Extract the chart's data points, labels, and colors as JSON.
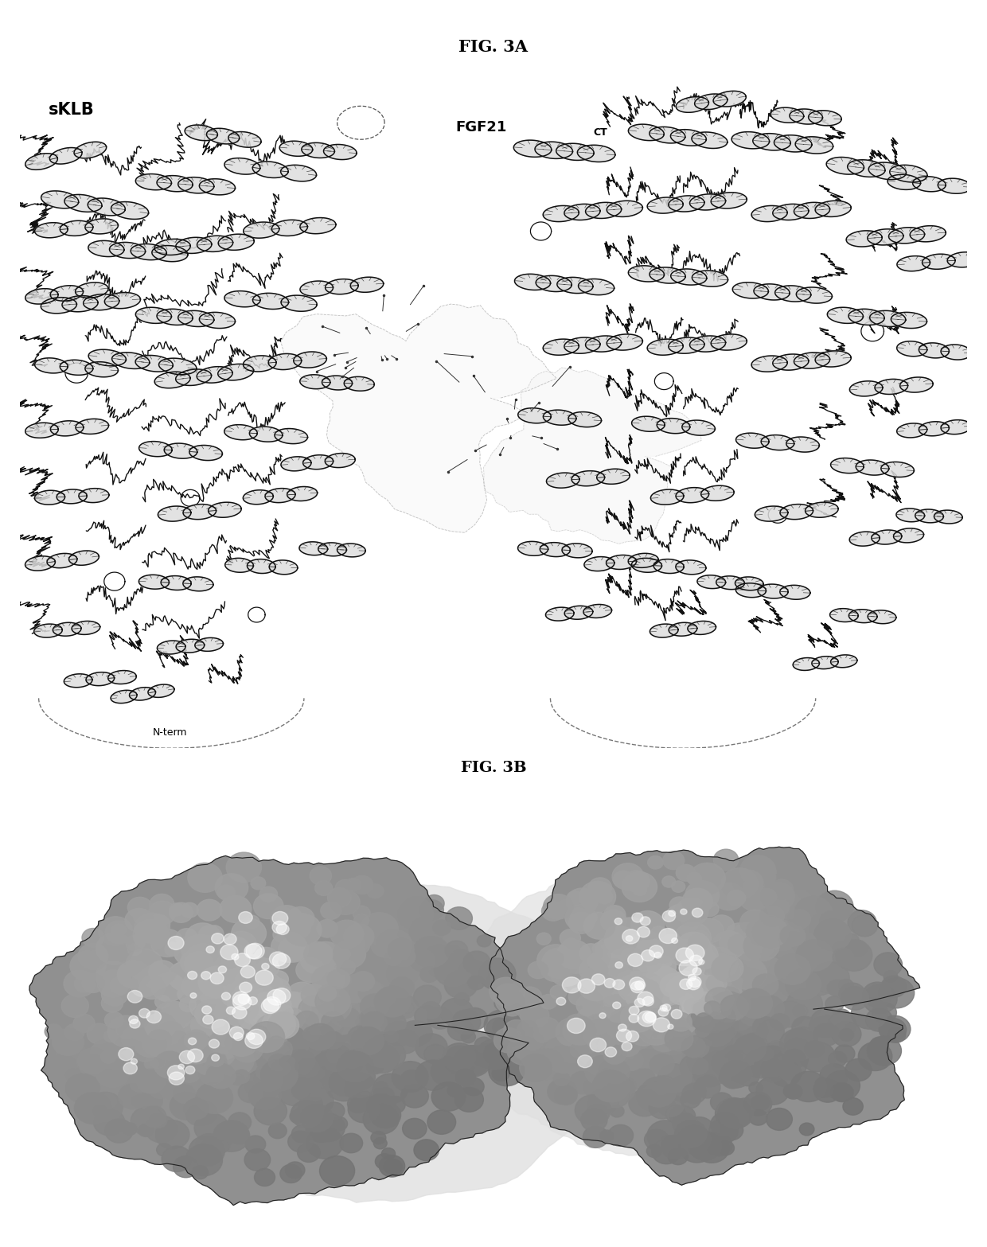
{
  "fig3a_label": "FIG. 3A",
  "fig3b_label": "FIG. 3B",
  "sklb_label": "sKLB",
  "fgf21_label": "FGF21",
  "fgf21_subscript": "CT",
  "nterm_label": "N-term",
  "bg_color": "#ffffff",
  "text_color": "#000000",
  "fig_width": 12.4,
  "fig_height": 15.67,
  "dpi": 100
}
